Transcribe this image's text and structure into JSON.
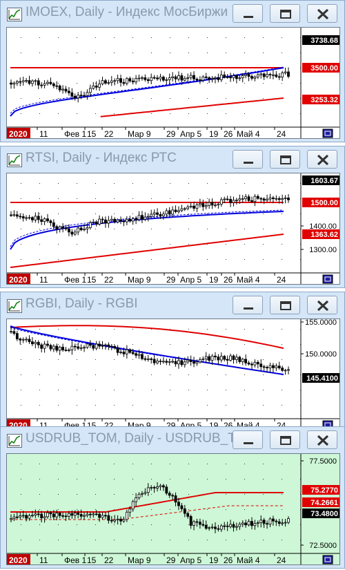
{
  "windows": [
    {
      "title": "IMOEX, Daily - Индекс МосБиржи",
      "bg": "#ffffff",
      "price_labels": [
        {
          "text": "3738.68",
          "style": "black"
        },
        {
          "text": "3500.00",
          "style": "red"
        },
        {
          "text": "3253.32",
          "style": "red"
        }
      ],
      "scale_labels": [],
      "x_ticks": [
        "2020",
        "11",
        "Фев 1",
        "15",
        "22",
        "Мар 9",
        "29",
        "Апр 5",
        "19",
        "26",
        "Май 4",
        "24"
      ]
    },
    {
      "title": "RTSI, Daily - Индекс РТС",
      "bg": "#ffffff",
      "price_labels": [
        {
          "text": "1603.67",
          "style": "black"
        },
        {
          "text": "1500.00",
          "style": "red"
        },
        {
          "text": "1363.62",
          "style": "red"
        }
      ],
      "scale_labels": [
        "1400.00",
        "1300.00"
      ],
      "x_ticks": [
        "2020",
        "11",
        "Фев 1",
        "15",
        "22",
        "Мар 9",
        "29",
        "Апр 5",
        "19",
        "26",
        "Май 4",
        "24"
      ]
    },
    {
      "title": "RGBI, Daily - RGBI",
      "bg": "#ffffff",
      "price_labels": [
        {
          "text": "145.4100",
          "style": "black"
        }
      ],
      "scale_labels": [
        "155.0000",
        "150.0000"
      ],
      "x_ticks": [
        "2020",
        "11",
        "Фев 1",
        "15",
        "22",
        "Мар 9",
        "29",
        "Апр 5",
        "19",
        "26",
        "Май 4",
        "24"
      ]
    },
    {
      "title": "USDRUB_TOM, Daily - USDRUB_TOM",
      "bg": "#cdf7d6",
      "price_labels": [
        {
          "text": "75.2770",
          "style": "red"
        },
        {
          "text": "74.2661",
          "style": "red"
        },
        {
          "text": "73.4800",
          "style": "black"
        }
      ],
      "scale_labels": [
        "77.5000",
        "72.5000"
      ],
      "x_ticks": [
        "2020",
        "11",
        "Фев 1",
        "15",
        "22",
        "Мар 9",
        "29",
        "Апр 5",
        "19",
        "26",
        "Май 4",
        "24"
      ]
    }
  ],
  "colors": {
    "red": "#e00000",
    "blue": "#0000dd",
    "candle": "#000000",
    "grid": "#333333"
  }
}
